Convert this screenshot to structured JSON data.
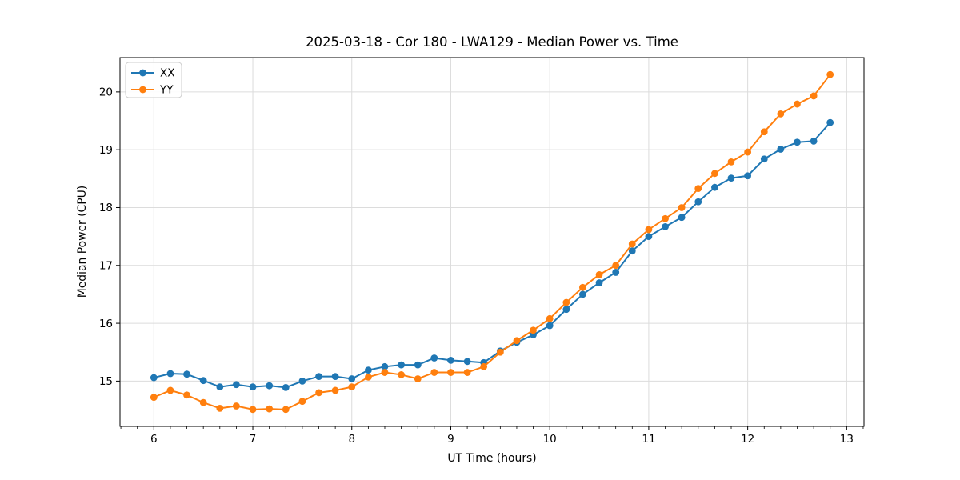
{
  "chart_data": {
    "type": "line",
    "title": "2025-03-18 - Cor 180 - LWA129 - Median Power vs. Time",
    "xlabel": "UT Time (hours)",
    "ylabel": "Median Power (CPU)",
    "xlim": [
      5.658,
      13.175
    ],
    "ylim": [
      14.217,
      20.593
    ],
    "x_ticks": [
      6,
      7,
      8,
      9,
      10,
      11,
      12,
      13
    ],
    "y_ticks": [
      15,
      16,
      17,
      18,
      19,
      20
    ],
    "x_minor_step": 0.166667,
    "grid": true,
    "legend_position": "upper-left",
    "colors": {
      "XX": "#1f77b4",
      "YY": "#ff7f0e",
      "grid": "#dcdcdc",
      "spine": "#000000",
      "legend_border": "#cccccc",
      "background": "#ffffff"
    },
    "x": [
      6.0,
      6.167,
      6.333,
      6.5,
      6.667,
      6.833,
      7.0,
      7.167,
      7.333,
      7.5,
      7.667,
      7.833,
      8.0,
      8.167,
      8.333,
      8.5,
      8.667,
      8.833,
      9.0,
      9.167,
      9.333,
      9.5,
      9.667,
      9.833,
      10.0,
      10.167,
      10.333,
      10.5,
      10.667,
      10.833,
      11.0,
      11.167,
      11.333,
      11.5,
      11.667,
      11.833,
      12.0,
      12.167,
      12.333,
      12.5,
      12.667,
      12.833
    ],
    "series": [
      {
        "name": "XX",
        "color_key": "XX",
        "values": [
          15.06,
          15.13,
          15.12,
          15.01,
          14.9,
          14.94,
          14.9,
          14.92,
          14.89,
          15.0,
          15.08,
          15.08,
          15.04,
          15.19,
          15.25,
          15.28,
          15.28,
          15.4,
          15.36,
          15.34,
          15.32,
          15.52,
          15.67,
          15.8,
          15.96,
          16.24,
          16.5,
          16.7,
          16.88,
          17.25,
          17.5,
          17.67,
          17.83,
          18.1,
          18.35,
          18.51,
          18.55,
          18.84,
          19.01,
          19.13,
          19.15,
          19.47
        ]
      },
      {
        "name": "YY",
        "color_key": "YY",
        "values": [
          14.72,
          14.84,
          14.76,
          14.63,
          14.53,
          14.57,
          14.51,
          14.52,
          14.51,
          14.65,
          14.8,
          14.84,
          14.9,
          15.07,
          15.15,
          15.11,
          15.04,
          15.15,
          15.15,
          15.15,
          15.25,
          15.5,
          15.7,
          15.88,
          16.08,
          16.36,
          16.62,
          16.84,
          17.0,
          17.37,
          17.62,
          17.81,
          18.0,
          18.33,
          18.59,
          18.79,
          18.96,
          19.31,
          19.62,
          19.79,
          19.93,
          20.3
        ]
      }
    ]
  }
}
